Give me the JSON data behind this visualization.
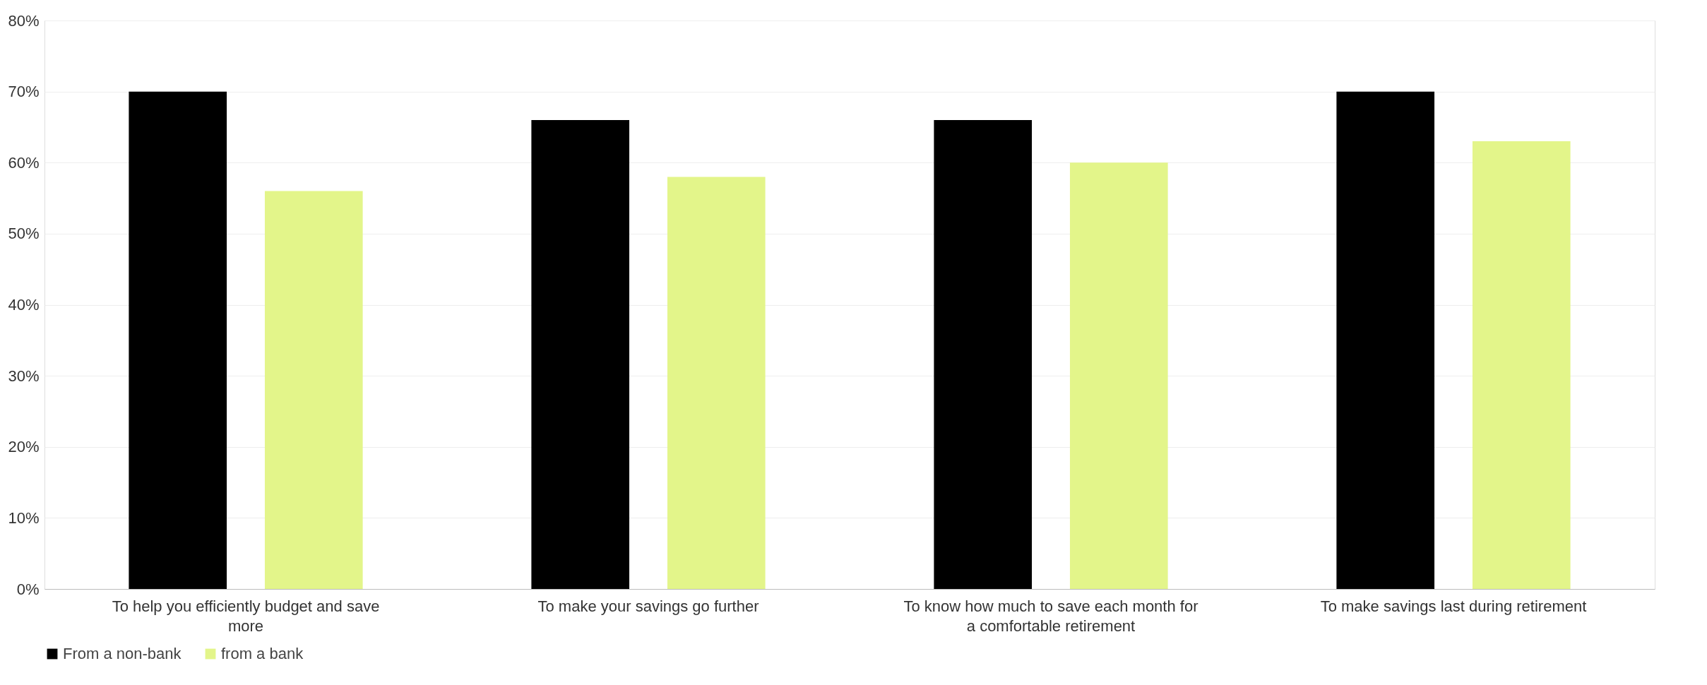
{
  "chart_data": {
    "type": "bar",
    "categories": [
      "To help you efficiently budget and save more",
      "To make your savings go further",
      "To know how much to save each month for a comfortable retirement",
      "To make savings last during retirement"
    ],
    "series": [
      {
        "name": "From a non-bank",
        "color": "#000000",
        "values": [
          70,
          66,
          66,
          70
        ]
      },
      {
        "name": "from a bank",
        "color": "#e3f58a",
        "values": [
          56,
          58,
          60,
          63
        ]
      }
    ],
    "ylim": [
      0,
      80
    ],
    "yticks": [
      {
        "value": 0,
        "label": "0%"
      },
      {
        "value": 10,
        "label": "10%"
      },
      {
        "value": 20,
        "label": "20%"
      },
      {
        "value": 30,
        "label": "30%"
      },
      {
        "value": 40,
        "label": "40%"
      },
      {
        "value": 50,
        "label": "50%"
      },
      {
        "value": 60,
        "label": "60%"
      },
      {
        "value": 70,
        "label": "70%"
      },
      {
        "value": 80,
        "label": "80%"
      }
    ],
    "grid": "y",
    "legend": "bottom"
  }
}
